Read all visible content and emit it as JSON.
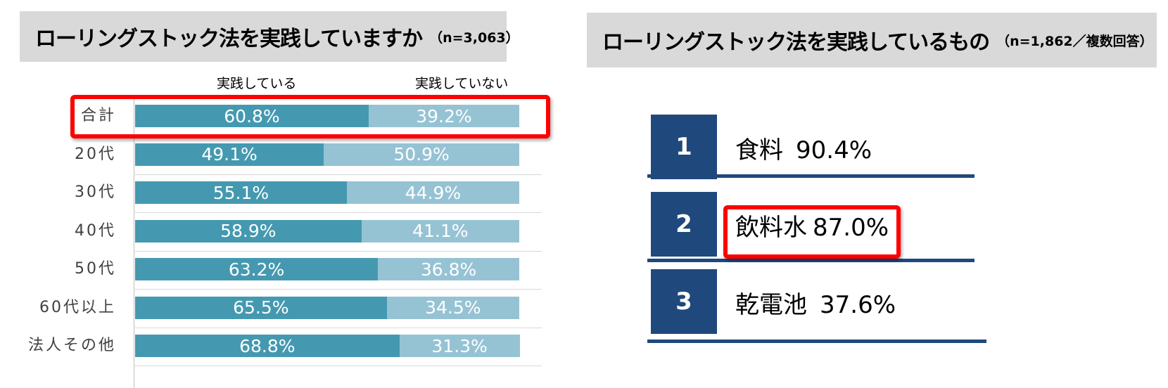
{
  "left_panel": {
    "title": "ローリングストック法を実践していますか",
    "note": "（n=3,063）"
  },
  "right_panel": {
    "title": "ローリングストック法を実践しているもの",
    "note": "（n=1,862／複数回答）"
  },
  "chart_data": [
    {
      "type": "bar",
      "stacked": true,
      "orientation": "horizontal",
      "title": "ローリングストック法を実践していますか",
      "categories": [
        "合計",
        "20代",
        "30代",
        "40代",
        "50代",
        "60代以上",
        "法人その他"
      ],
      "series": [
        {
          "name": "実践している",
          "values": [
            60.8,
            49.1,
            55.1,
            58.9,
            63.2,
            65.5,
            68.8
          ],
          "color": "#4499b0"
        },
        {
          "name": "実践していない",
          "values": [
            39.2,
            50.9,
            44.9,
            41.1,
            36.8,
            34.5,
            31.3
          ],
          "color": "#96c3d4"
        }
      ],
      "value_labels": [
        [
          "60.8%",
          "49.1%",
          "55.1%",
          "58.9%",
          "63.2%",
          "65.5%",
          "68.8%"
        ],
        [
          "39.2%",
          "50.9%",
          "44.9%",
          "41.1%",
          "36.8%",
          "34.5%",
          "31.3%"
        ]
      ],
      "xlim": [
        0,
        100
      ],
      "legend_position": "top",
      "highlight_category": "合計",
      "highlight_color": "#ff0000"
    },
    {
      "type": "table",
      "title": "ローリングストック法を実践しているもの",
      "rows": [
        {
          "rank": "1",
          "item": "食料",
          "value": 90.4,
          "value_label": "90.4%"
        },
        {
          "rank": "2",
          "item": "飲料水",
          "value": 87.0,
          "value_label": "87.0%"
        },
        {
          "rank": "3",
          "item": "乾電池",
          "value": 37.6,
          "value_label": "37.6%"
        }
      ],
      "highlight_item": "飲料水",
      "accent_color": "#1f497d"
    }
  ]
}
